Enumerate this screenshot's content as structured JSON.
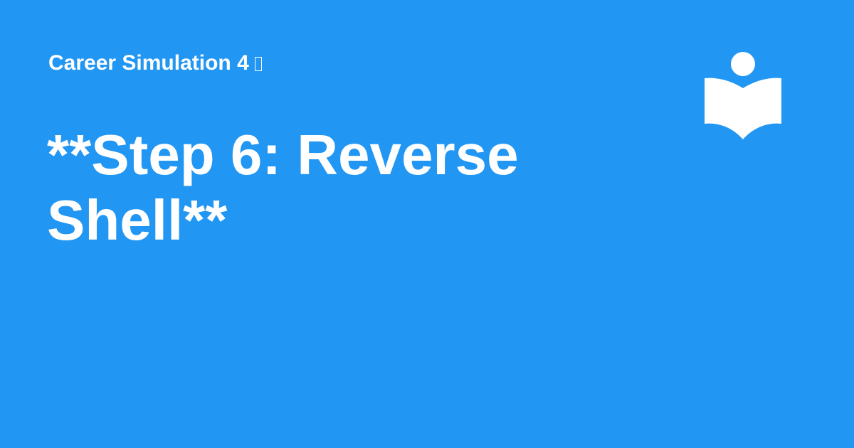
{
  "header": {
    "subtitle": "Career Simulation 4",
    "subtitle_glyph_icon": "missing-glyph-box-icon"
  },
  "main": {
    "title": "**Step 6: Reverse Shell**"
  },
  "logo": {
    "icon": "person-reading-book-icon"
  },
  "colors": {
    "background": "#2196F3",
    "text": "#FFFFFF"
  }
}
